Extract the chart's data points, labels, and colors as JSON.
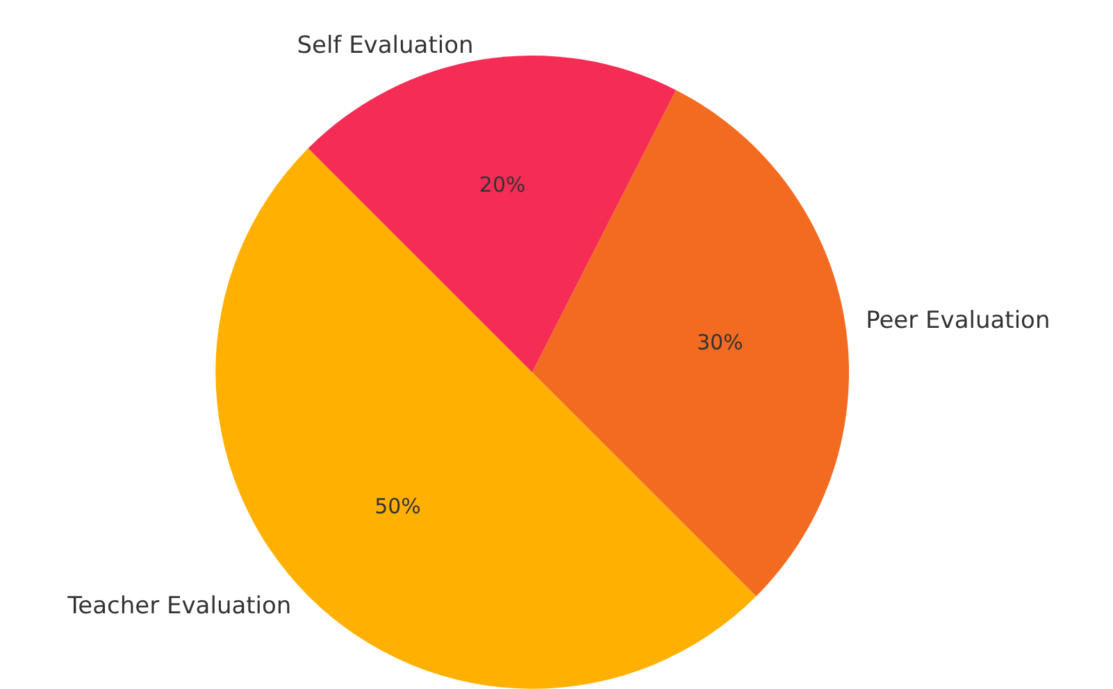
{
  "chart_data": {
    "type": "pie",
    "categories": [
      "Teacher Evaluation",
      "Peer Evaluation",
      "Self Evaluation"
    ],
    "values": [
      50,
      30,
      20
    ],
    "colors": [
      "#ffb000",
      "#f26b21",
      "#f52d55"
    ],
    "value_labels": [
      "50%",
      "30%",
      "20%"
    ],
    "legend": false
  }
}
